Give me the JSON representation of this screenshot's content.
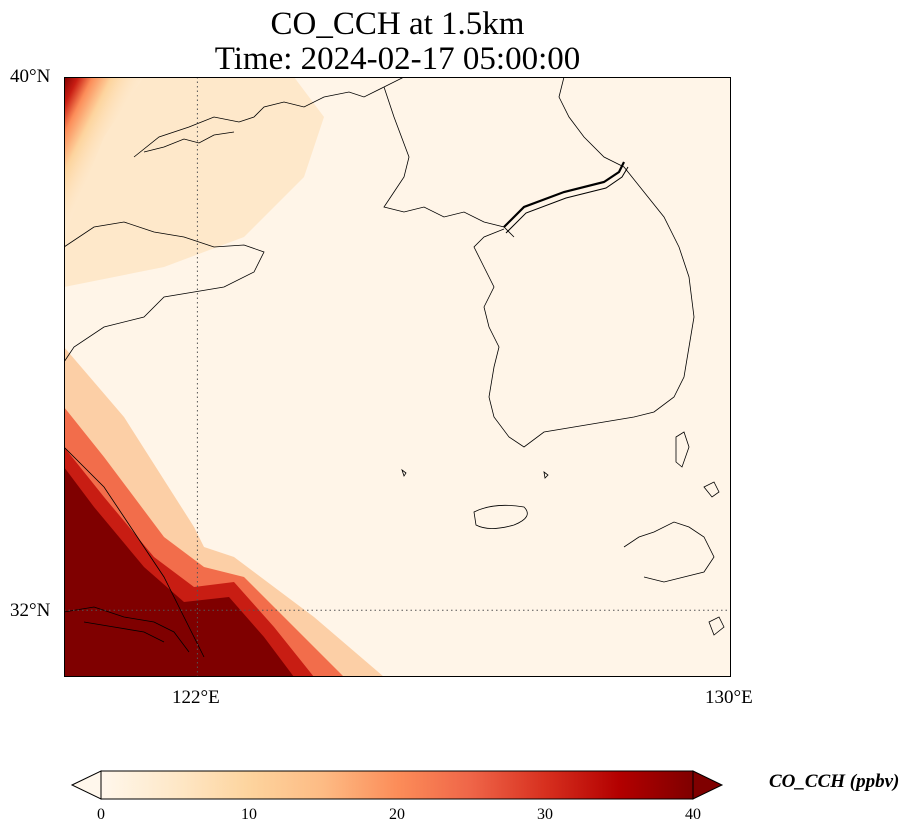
{
  "title": {
    "line1": "CO_CCH at 1.5km",
    "line2": "Time: 2024-02-17 05:00:00"
  },
  "map": {
    "variable": "CO_CCH",
    "level": "1.5km",
    "lon_range": [
      120,
      130
    ],
    "lat_range": [
      31,
      40
    ],
    "gridlines": {
      "lons": [
        122
      ],
      "lats": [
        32
      ],
      "style": "dotted"
    },
    "lon_tick_labels": [
      "122°E",
      "130°E"
    ],
    "lat_tick_labels": [
      "40°N",
      "32°N"
    ],
    "field_description_regions": [
      "high values (>40 ppbv) in south-west corner near 31-34°N 120-123°E",
      "moderate values (~10 ppbv) north-west near 38-40°N 120-123°E",
      "background ~2-5 ppbv elsewhere"
    ]
  },
  "colorbar": {
    "label": "CO_CCH (ppbv)",
    "ticks": [
      "0",
      "10",
      "20",
      "30",
      "40"
    ],
    "range": [
      0,
      40
    ],
    "extend": "both",
    "colormap": "OrRd",
    "stops": [
      "#fff7ec",
      "#fee8c8",
      "#fdd49e",
      "#fdbb84",
      "#fc8d59",
      "#ef6548",
      "#d7301f",
      "#b30000",
      "#7f0000"
    ]
  }
}
